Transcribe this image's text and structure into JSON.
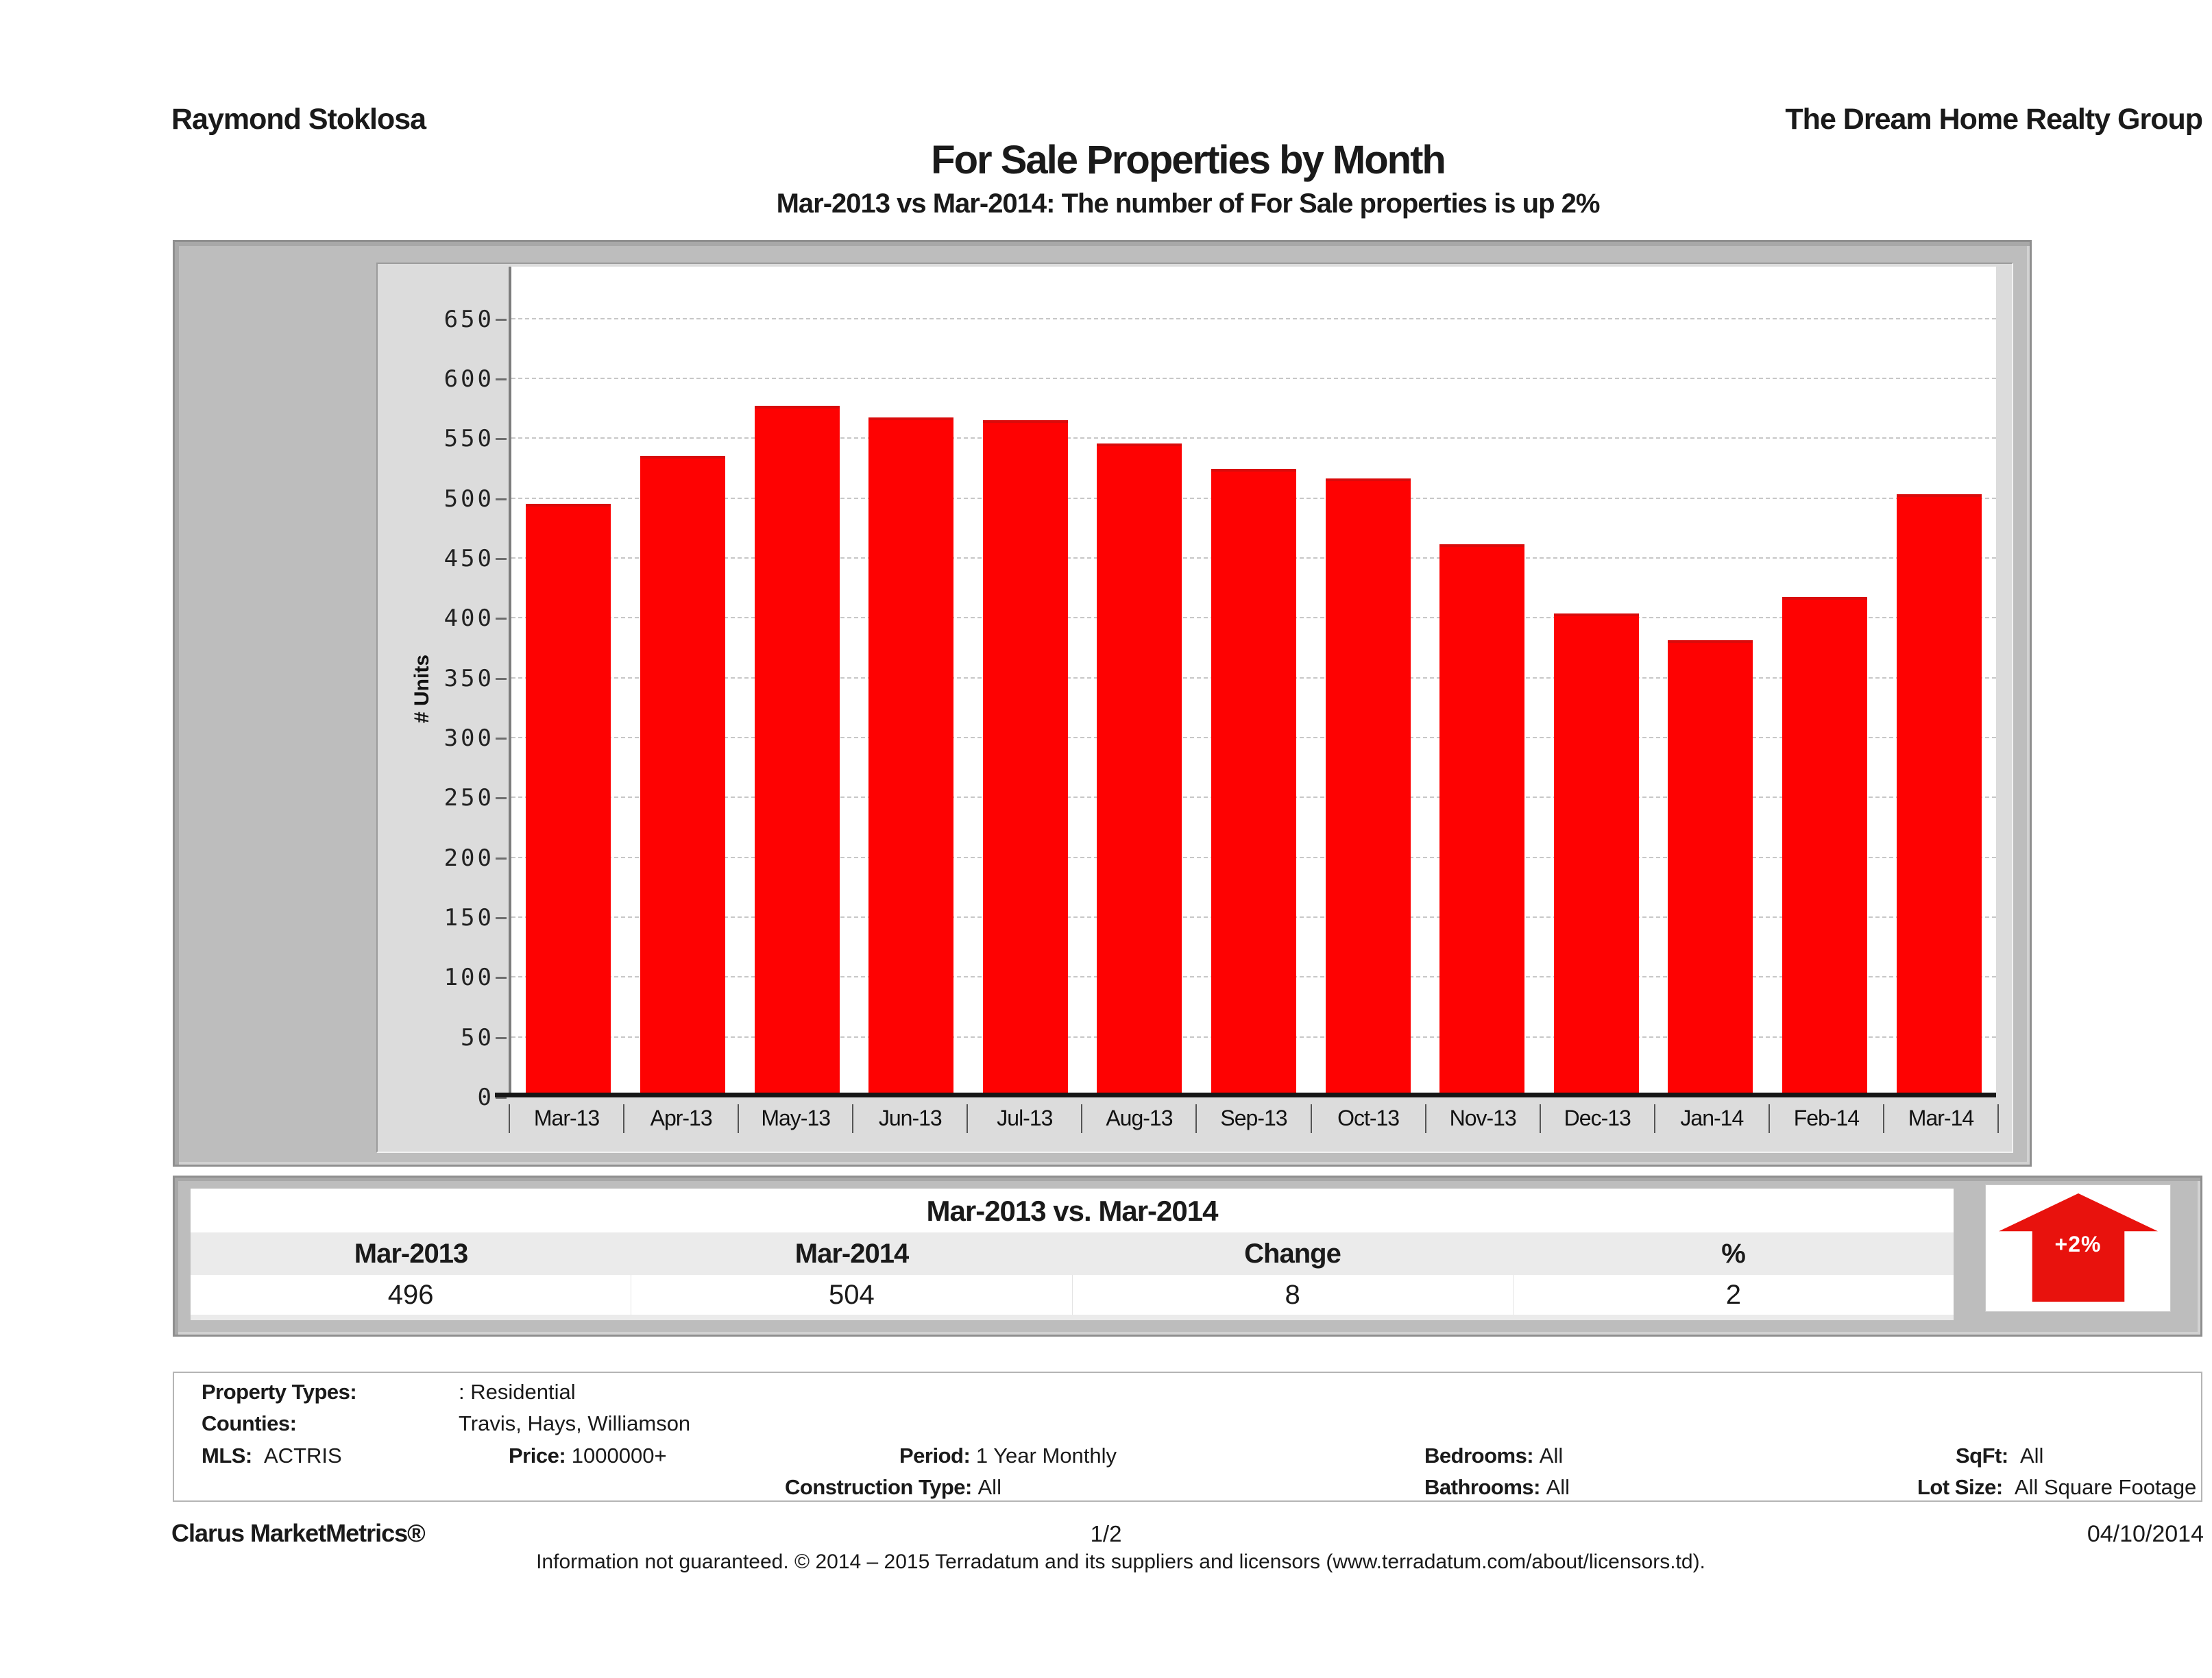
{
  "header": {
    "agent": "Raymond Stoklosa",
    "company": "The Dream Home Realty Group",
    "title": "For Sale Properties by Month",
    "subtitle": "Mar-2013 vs Mar-2014: The number of For Sale  properties is up 2%"
  },
  "chart_data": {
    "type": "bar",
    "title": "For Sale Properties by Month",
    "categories": [
      "Mar-13",
      "Apr-13",
      "May-13",
      "Jun-13",
      "Jul-13",
      "Aug-13",
      "Sep-13",
      "Oct-13",
      "Nov-13",
      "Dec-13",
      "Jan-14",
      "Feb-14",
      "Mar-14"
    ],
    "values": [
      496,
      536,
      578,
      568,
      566,
      546,
      525,
      517,
      462,
      404,
      382,
      418,
      504
    ],
    "xlabel": "",
    "ylabel": "# Units",
    "ylim": [
      0,
      694
    ],
    "ytick_step": 50,
    "ytick_max": 650,
    "bar_color": "#fe0202",
    "grid": "horizontal-dashed",
    "legend": "none"
  },
  "comparison_table": {
    "title": "Mar-2013 vs. Mar-2014",
    "columns": [
      "Mar-2013",
      "Mar-2014",
      "Change",
      "%"
    ],
    "values": [
      "496",
      "504",
      "8",
      "2"
    ],
    "badge": "+2%",
    "badge_color": "#e8120d"
  },
  "filters": {
    "property_types_label": "Property Types:",
    "property_types": ": Residential",
    "counties_label": "Counties:",
    "counties": "Travis, Hays, Williamson",
    "mls_label": "MLS:",
    "mls": "ACTRIS",
    "price_label": "Price:",
    "price": "1000000+",
    "period_label": "Period:",
    "period": "1 Year Monthly",
    "bedrooms_label": "Bedrooms:",
    "bedrooms": "All",
    "sqft_label": "SqFt:",
    "sqft": "All",
    "construction_label": "Construction Type:",
    "construction": "All",
    "bathrooms_label": "Bathrooms:",
    "bathrooms": "All",
    "lot_size_label": "Lot Size:",
    "lot_size": "All Square Footage"
  },
  "footer": {
    "brand": "Clarus MarketMetrics®",
    "page": "1/2",
    "date": "04/10/2014",
    "disclaimer": "Information not guaranteed. © 2014 – 2015 Terradatum and its suppliers and licensors (www.terradatum.com/about/licensors.td)."
  }
}
